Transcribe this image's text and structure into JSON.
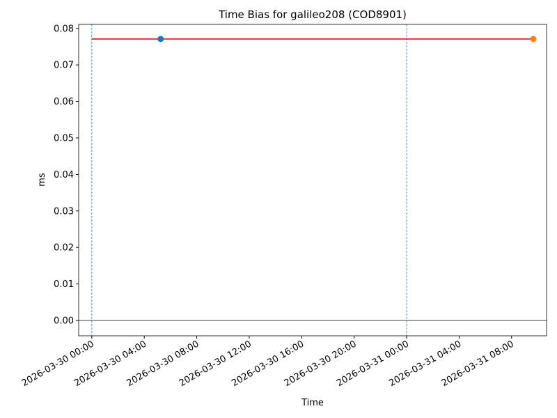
{
  "chart_data": {
    "type": "line",
    "title": "Time Bias for galileo208 (COD8901)",
    "x_label": "Time",
    "y_label": "ms",
    "series": [
      {
        "kind": "line",
        "color": "#e00000",
        "x": [
          "2026-03-30 00:00",
          "2026-03-31 09:40"
        ],
        "values": [
          0.0771,
          0.0771
        ]
      },
      {
        "kind": "point",
        "color": "#1f77b4",
        "x": [
          "2026-03-30 05:15"
        ],
        "values": [
          0.0771
        ]
      },
      {
        "kind": "point",
        "color": "#ff7f0e",
        "x": [
          "2026-03-31 09:40"
        ],
        "values": [
          0.0771
        ]
      }
    ],
    "hlines": [
      0
    ],
    "vlines": [
      "2026-03-30 00:00",
      "2026-03-31 00:00"
    ],
    "xlim": [
      "2026-03-29 23:00",
      "2026-03-31 10:40"
    ],
    "xticks": [
      "2026-03-30 00:00",
      "2026-03-30 04:00",
      "2026-03-30 08:00",
      "2026-03-30 12:00",
      "2026-03-30 16:00",
      "2026-03-30 20:00",
      "2026-03-31 00:00",
      "2026-03-31 04:00",
      "2026-03-31 08:00"
    ],
    "ylim": [
      -0.0042,
      0.0811
    ],
    "yticks": [
      {
        "value": 0,
        "label": "0.00"
      },
      0.01,
      0.02,
      0.03,
      0.04,
      0.05,
      0.06,
      0.07,
      0.08
    ]
  }
}
